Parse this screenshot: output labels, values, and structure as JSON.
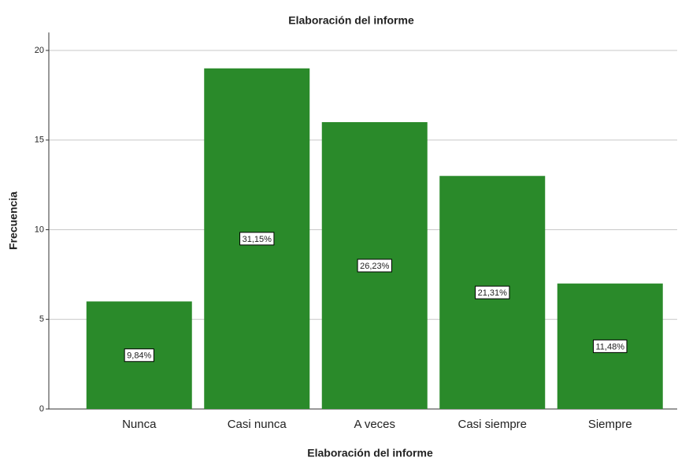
{
  "chart_data": {
    "type": "bar",
    "title": "Elaboración del informe",
    "x_label": "Elaboración del informe",
    "y_label": "Frecuencia",
    "categories": [
      "Nunca",
      "Casi nunca",
      "A veces",
      "Casi siempre",
      "Siempre"
    ],
    "values": [
      6,
      19,
      16,
      13,
      7
    ],
    "color": "#2a8a2a",
    "percentages": {
      "values": [
        9.84,
        31.15,
        26.23,
        21.31,
        11.48
      ],
      "value_labels": [
        "9,84%",
        "31,15%",
        "26,23%",
        "21,31%",
        "11,48%"
      ]
    },
    "ylim": [
      0,
      21
    ],
    "yticks": [
      0,
      5,
      10,
      15,
      20
    ],
    "grid": true
  }
}
